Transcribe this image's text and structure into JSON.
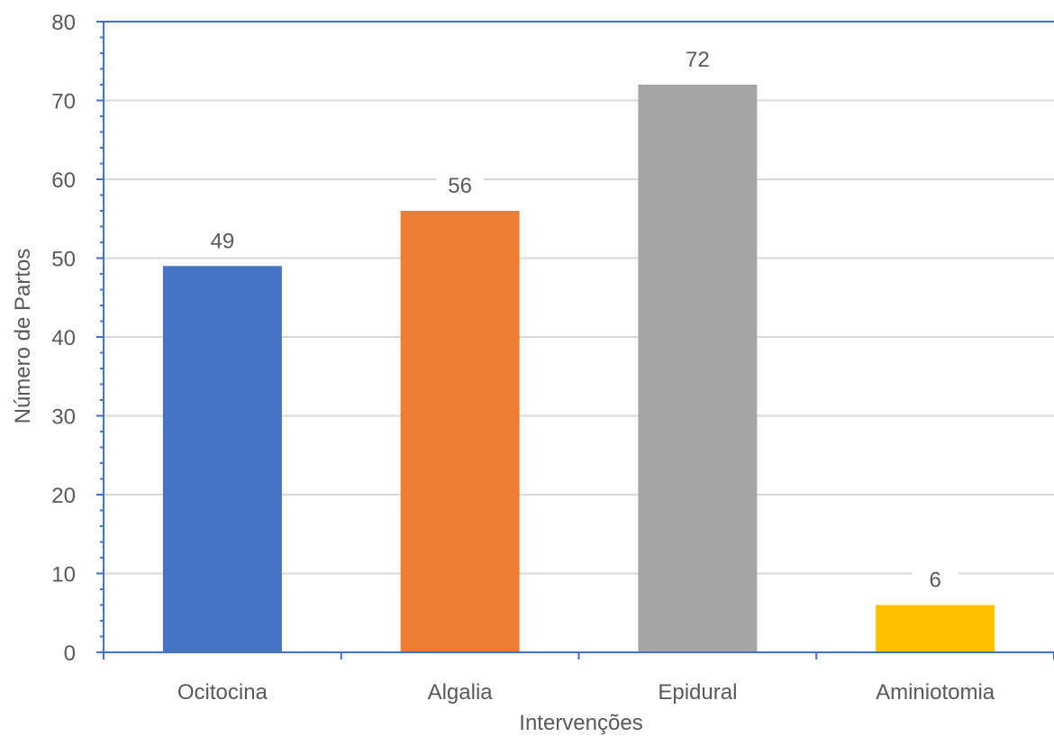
{
  "chart_data": {
    "type": "bar",
    "categories": [
      "Ocitocina",
      "Algalia",
      "Epidural",
      "Aminiotomia"
    ],
    "values": [
      49,
      56,
      72,
      6
    ],
    "data_labels": [
      "49",
      "56",
      "72",
      "6"
    ],
    "bar_colors": [
      "#4472C4",
      "#ED7D31",
      "#A5A5A5",
      "#FFC000"
    ],
    "axis_color": "#4472C4",
    "grid_color": "#D9D9D9",
    "title": "",
    "xlabel": "Intervenções",
    "ylabel": "Número de Partos",
    "ylim": [
      0,
      80
    ],
    "yticks": [
      0,
      10,
      20,
      30,
      40,
      50,
      60,
      70,
      80
    ],
    "ytick_labels": [
      "0",
      "10",
      "20",
      "30",
      "40",
      "50",
      "60",
      "70",
      "80"
    ],
    "grid": true,
    "legend": "none"
  }
}
